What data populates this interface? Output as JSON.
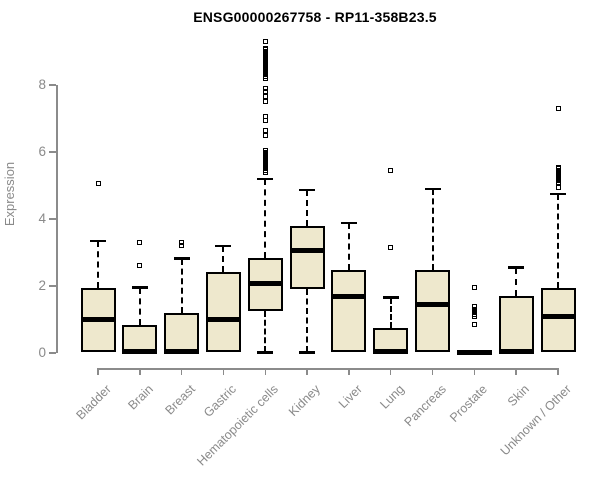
{
  "chart_data": {
    "type": "boxplot",
    "title": "ENSG00000267758 - RP11-358B23.5",
    "xlabel": "",
    "ylabel": "Expression",
    "ylim": [
      0,
      9.6
    ],
    "yticks": [
      0,
      2,
      4,
      6,
      8
    ],
    "grid": false,
    "legend_position": "none",
    "layout_hints": {
      "x_tick_rotation": -45,
      "box_style": "filled, black median band, dashed whiskers, open-square outliers"
    },
    "categories": [
      "Bladder",
      "Brain",
      "Breast",
      "Gastric",
      "Hematopoietic cells",
      "Kidney",
      "Liver",
      "Lung",
      "Pancreas",
      "Prostate",
      "Skin",
      "Unknown / Other"
    ],
    "series": [
      {
        "name": "Bladder",
        "whisker_low": 0.02,
        "q1": 0.02,
        "median": 1.0,
        "q3": 1.93,
        "whisker_high": 3.35,
        "outliers": [
          5.05
        ]
      },
      {
        "name": "Brain",
        "whisker_low": 0.0,
        "q1": 0.0,
        "median": 0.05,
        "q3": 0.85,
        "whisker_high": 1.95,
        "outliers": [
          3.3,
          2.6
        ]
      },
      {
        "name": "Breast",
        "whisker_low": 0.0,
        "q1": 0.0,
        "median": 0.05,
        "q3": 1.2,
        "whisker_high": 2.82,
        "outliers": [
          3.3,
          3.2
        ]
      },
      {
        "name": "Gastric",
        "whisker_low": 0.02,
        "q1": 0.02,
        "median": 1.0,
        "q3": 2.43,
        "whisker_high": 3.2,
        "outliers": []
      },
      {
        "name": "Hematopoietic cells",
        "whisker_low": 0.02,
        "q1": 1.24,
        "median": 2.07,
        "q3": 2.84,
        "whisker_high": 5.2,
        "outliers": [
          9.3,
          9.1,
          9.05,
          9.0,
          8.95,
          8.9,
          8.85,
          8.8,
          8.75,
          8.7,
          8.65,
          8.6,
          8.55,
          8.5,
          8.45,
          8.4,
          8.35,
          8.3,
          8.25,
          8.2,
          7.9,
          7.8,
          7.65,
          7.5,
          7.05,
          6.95,
          6.65,
          6.5,
          6.05,
          6.0,
          5.95,
          5.9,
          5.85,
          5.8,
          5.75,
          5.7,
          5.65,
          5.6,
          5.55,
          5.5,
          5.45,
          5.4
        ]
      },
      {
        "name": "Kidney",
        "whisker_low": 0.02,
        "q1": 1.9,
        "median": 3.05,
        "q3": 3.8,
        "whisker_high": 4.87,
        "outliers": []
      },
      {
        "name": "Liver",
        "whisker_low": 0.02,
        "q1": 0.02,
        "median": 1.7,
        "q3": 2.48,
        "whisker_high": 3.88,
        "outliers": []
      },
      {
        "name": "Lung",
        "whisker_low": 0.0,
        "q1": 0.0,
        "median": 0.05,
        "q3": 0.75,
        "whisker_high": 1.65,
        "outliers": [
          5.45,
          3.15
        ]
      },
      {
        "name": "Pancreas",
        "whisker_low": 0.02,
        "q1": 0.02,
        "median": 1.45,
        "q3": 2.48,
        "whisker_high": 4.9,
        "outliers": []
      },
      {
        "name": "Prostate",
        "whisker_low": 0.0,
        "q1": 0.0,
        "median": 0.02,
        "q3": 0.05,
        "whisker_high": 0.05,
        "outliers": [
          1.95,
          1.4,
          1.3,
          1.25,
          1.2,
          1.15,
          1.1,
          0.85
        ]
      },
      {
        "name": "Skin",
        "whisker_low": 0.02,
        "q1": 0.02,
        "median": 0.05,
        "q3": 1.7,
        "whisker_high": 2.55,
        "outliers": []
      },
      {
        "name": "Unknown / Other",
        "whisker_low": 0.02,
        "q1": 0.02,
        "median": 1.1,
        "q3": 1.95,
        "whisker_high": 4.75,
        "outliers": [
          7.3,
          5.55,
          5.5,
          5.45,
          5.4,
          5.35,
          5.3,
          5.25,
          5.2,
          5.15,
          5.1,
          5.05,
          4.95
        ]
      }
    ],
    "colors": {
      "box_fill": "#EEE8CD",
      "box_border": "#000000",
      "median": "#000000",
      "whisker": "#000000",
      "axis": "#8b8b8b",
      "tick_label": "#8a8a8a",
      "title": "#000000",
      "background": "#ffffff"
    }
  }
}
